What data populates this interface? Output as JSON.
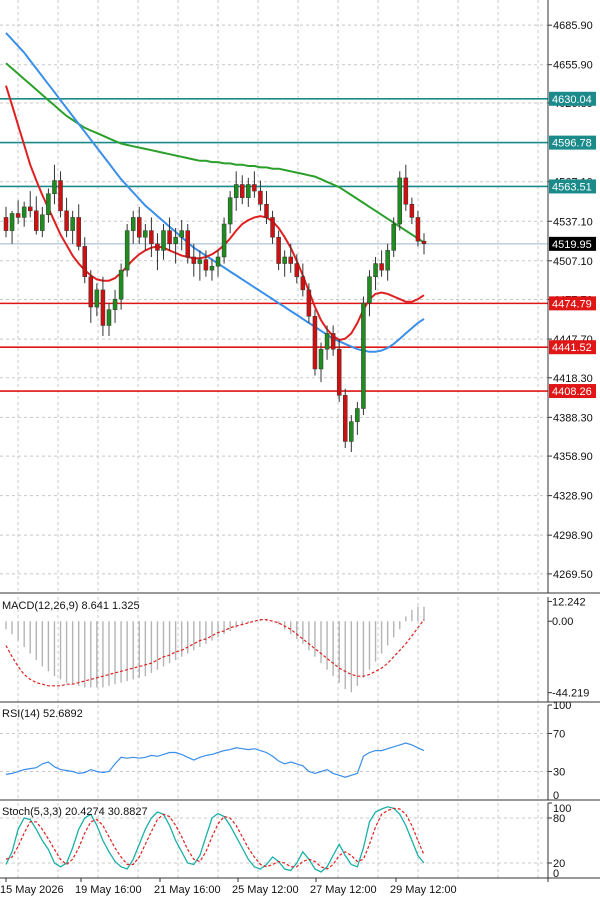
{
  "chart_data": {
    "type": "candlestick",
    "price_panel": {
      "y_ticks": [
        "4685.90",
        "4655.90",
        "4626.80",
        "4567.10",
        "4537.10",
        "4507.10",
        "4477.70",
        "4447.70",
        "4418.30",
        "4388.30",
        "4358.90",
        "4328.90",
        "4298.90",
        "4269.50"
      ],
      "ylim": [
        4255,
        4705
      ],
      "current_price": "4519.95",
      "horizontal_levels": [
        {
          "label": "4630.04",
          "value": 4630.04,
          "color": "#1a8a8a"
        },
        {
          "label": "4596.78",
          "value": 4596.78,
          "color": "#1a8a8a"
        },
        {
          "label": "4563.51",
          "value": 4563.51,
          "color": "#1a8a8a"
        },
        {
          "label": "4474.79",
          "value": 4474.79,
          "color": "#e01515"
        },
        {
          "label": "4441.52",
          "value": 4441.52,
          "color": "#e01515"
        },
        {
          "label": "4408.26",
          "value": 4408.26,
          "color": "#e01515"
        }
      ],
      "candles": [
        [
          4540,
          4548,
          4525,
          4530
        ],
        [
          4530,
          4545,
          4520,
          4543
        ],
        [
          4543,
          4553,
          4535,
          4540
        ],
        [
          4540,
          4552,
          4533,
          4548
        ],
        [
          4548,
          4560,
          4540,
          4545
        ],
        [
          4545,
          4556,
          4527,
          4530
        ],
        [
          4530,
          4548,
          4525,
          4542
        ],
        [
          4542,
          4562,
          4536,
          4558
        ],
        [
          4558,
          4580,
          4550,
          4568
        ],
        [
          4568,
          4575,
          4540,
          4545
        ],
        [
          4545,
          4555,
          4525,
          4530
        ],
        [
          4530,
          4545,
          4520,
          4540
        ],
        [
          4540,
          4550,
          4515,
          4518
        ],
        [
          4518,
          4525,
          4490,
          4495
        ],
        [
          4495,
          4500,
          4460,
          4472
        ],
        [
          4472,
          4490,
          4465,
          4485
        ],
        [
          4485,
          4495,
          4450,
          4458
        ],
        [
          4458,
          4475,
          4450,
          4470
        ],
        [
          4470,
          4485,
          4460,
          4478
        ],
        [
          4478,
          4505,
          4470,
          4500
        ],
        [
          4500,
          4535,
          4495,
          4530
        ],
        [
          4530,
          4545,
          4520,
          4540
        ],
        [
          4540,
          4548,
          4520,
          4525
        ],
        [
          4525,
          4535,
          4515,
          4530
        ],
        [
          4530,
          4540,
          4510,
          4520
        ],
        [
          4520,
          4528,
          4500,
          4515
        ],
        [
          4515,
          4535,
          4508,
          4530
        ],
        [
          4530,
          4540,
          4515,
          4520
        ],
        [
          4520,
          4532,
          4505,
          4525
        ],
        [
          4525,
          4538,
          4515,
          4530
        ],
        [
          4530,
          4535,
          4505,
          4510
        ],
        [
          4510,
          4520,
          4495,
          4505
        ],
        [
          4505,
          4515,
          4492,
          4508
        ],
        [
          4508,
          4515,
          4495,
          4500
        ],
        [
          4500,
          4508,
          4492,
          4503
        ],
        [
          4503,
          4515,
          4495,
          4510
        ],
        [
          4510,
          4540,
          4505,
          4535
        ],
        [
          4535,
          4560,
          4528,
          4555
        ],
        [
          4555,
          4575,
          4545,
          4565
        ],
        [
          4565,
          4572,
          4550,
          4555
        ],
        [
          4555,
          4570,
          4548,
          4565
        ],
        [
          4565,
          4575,
          4555,
          4560
        ],
        [
          4560,
          4568,
          4545,
          4550
        ],
        [
          4550,
          4560,
          4535,
          4540
        ],
        [
          4540,
          4545,
          4520,
          4525
        ],
        [
          4525,
          4530,
          4500,
          4505
        ],
        [
          4505,
          4515,
          4495,
          4510
        ],
        [
          4510,
          4520,
          4498,
          4505
        ],
        [
          4505,
          4512,
          4490,
          4495
        ],
        [
          4495,
          4505,
          4480,
          4485
        ],
        [
          4485,
          4490,
          4460,
          4465
        ],
        [
          4465,
          4470,
          4420,
          4425
        ],
        [
          4425,
          4445,
          4415,
          4440
        ],
        [
          4440,
          4458,
          4432,
          4452
        ],
        [
          4452,
          4458,
          4435,
          4440
        ],
        [
          4440,
          4448,
          4400,
          4405
        ],
        [
          4405,
          4410,
          4365,
          4370
        ],
        [
          4370,
          4390,
          4362,
          4385
        ],
        [
          4385,
          4400,
          4375,
          4395
        ],
        [
          4395,
          4480,
          4390,
          4475
        ],
        [
          4475,
          4500,
          4465,
          4495
        ],
        [
          4495,
          4510,
          4485,
          4505
        ],
        [
          4505,
          4515,
          4495,
          4500
        ],
        [
          4500,
          4520,
          4492,
          4515
        ],
        [
          4515,
          4540,
          4510,
          4535
        ],
        [
          4535,
          4575,
          4530,
          4570
        ],
        [
          4570,
          4580,
          4545,
          4550
        ],
        [
          4550,
          4555,
          4535,
          4540
        ],
        [
          4540,
          4545,
          4518,
          4522
        ],
        [
          4522,
          4528,
          4512,
          4520
        ]
      ],
      "moving_averages": [
        {
          "color": "#2aa02a",
          "values": [
            4657,
            4653,
            4649,
            4645,
            4641,
            4637,
            4633,
            4629,
            4625,
            4621,
            4617,
            4614,
            4611,
            4608,
            4606,
            4604,
            4602,
            4600,
            4598,
            4596,
            4595,
            4594,
            4593,
            4592,
            4591,
            4590,
            4589,
            4588,
            4587,
            4586,
            4585,
            4584,
            4583,
            4583,
            4582,
            4582,
            4581,
            4581,
            4580,
            4580,
            4579,
            4579,
            4578,
            4578,
            4577,
            4577,
            4576,
            4575,
            4574,
            4573,
            4572,
            4571,
            4569,
            4567,
            4565,
            4563,
            4560,
            4557,
            4554,
            4551,
            4548,
            4545,
            4542,
            4539,
            4536,
            4533,
            4530,
            4527,
            4524,
            4521
          ]
        },
        {
          "color": "#3a8fe8",
          "values": [
            4680,
            4675,
            4670,
            4665,
            4659,
            4653,
            4647,
            4641,
            4635,
            4629,
            4623,
            4617,
            4611,
            4605,
            4599,
            4593,
            4587,
            4581,
            4575,
            4569,
            4564,
            4559,
            4554,
            4549,
            4545,
            4541,
            4537,
            4533,
            4529,
            4525,
            4521,
            4517,
            4514,
            4511,
            4508,
            4505,
            4502,
            4499,
            4496,
            4493,
            4490,
            4487,
            4484,
            4481,
            4478,
            4475,
            4472,
            4469,
            4466,
            4463,
            4460,
            4457,
            4454,
            4451,
            4448,
            4446,
            4444,
            4442,
            4440,
            4439,
            4438,
            4438,
            4439,
            4441,
            4444,
            4448,
            4452,
            4456,
            4460,
            4463
          ]
        },
        {
          "color": "#e02020",
          "values": [
            4640,
            4625,
            4610,
            4595,
            4580,
            4568,
            4557,
            4547,
            4537,
            4527,
            4519,
            4511,
            4505,
            4500,
            4496,
            4493,
            4492,
            4492,
            4494,
            4498,
            4503,
            4508,
            4512,
            4515,
            4517,
            4518,
            4517,
            4515,
            4513,
            4511,
            4510,
            4509,
            4509,
            4510,
            4512,
            4515,
            4519,
            4524,
            4530,
            4535,
            4538,
            4540,
            4541,
            4540,
            4537,
            4532,
            4525,
            4517,
            4507,
            4496,
            4484,
            4472,
            4462,
            4455,
            4450,
            4447,
            4448,
            4452,
            4460,
            4470,
            4478,
            4482,
            4483,
            4482,
            4480,
            4478,
            4476,
            4476,
            4478,
            4481
          ]
        }
      ]
    },
    "x_labels": [
      "15 May 2026",
      "19 May 16:00",
      "21 May 16:00",
      "25 May 12:00",
      "27 May 12:00",
      "29 May 12:00"
    ],
    "macd": {
      "label": "MACD(12,26,9) 8.641 1.325",
      "y_ticks": [
        "12.242",
        "0.00",
        "-44.219"
      ],
      "ylim": [
        -50,
        15
      ],
      "histogram": [
        -5,
        -8,
        -12,
        -16,
        -20,
        -24,
        -28,
        -31,
        -34,
        -36,
        -38,
        -39,
        -40,
        -41,
        -41,
        -41,
        -41,
        -40,
        -39,
        -38,
        -37,
        -36,
        -35,
        -34,
        -32,
        -30,
        -28,
        -26,
        -24,
        -22,
        -20,
        -18,
        -16,
        -14,
        -12,
        -10,
        -8,
        -6,
        -4,
        -2,
        -1,
        0,
        1,
        1,
        0,
        -2,
        -5,
        -8,
        -11,
        -14,
        -18,
        -22,
        -26,
        -30,
        -34,
        -38,
        -42,
        -44,
        -40,
        -35,
        -30,
        -25,
        -20,
        -15,
        -10,
        -5,
        3,
        7,
        9,
        9
      ],
      "signal": [
        -15,
        -22,
        -28,
        -33,
        -36,
        -38,
        -39,
        -40,
        -40,
        -40,
        -39,
        -39,
        -38,
        -37,
        -36,
        -35,
        -34,
        -33,
        -32,
        -31,
        -30,
        -29,
        -28,
        -27,
        -26,
        -24,
        -22,
        -21,
        -19,
        -18,
        -16,
        -14,
        -12,
        -11,
        -9,
        -7,
        -6,
        -4,
        -3,
        -2,
        -1,
        0,
        1,
        1,
        0,
        -1,
        -3,
        -5,
        -8,
        -11,
        -14,
        -17,
        -20,
        -23,
        -26,
        -29,
        -31,
        -33,
        -34,
        -34,
        -33,
        -31,
        -29,
        -26,
        -22,
        -18,
        -14,
        -9,
        -4,
        1
      ]
    },
    "rsi": {
      "label": "RSI(14) 52.6892",
      "y_ticks": [
        "100",
        "70",
        "30",
        "0"
      ],
      "ylim": [
        0,
        100
      ],
      "values": [
        27,
        28,
        30,
        32,
        33,
        34,
        38,
        40,
        35,
        32,
        31,
        30,
        28,
        29,
        32,
        30,
        29,
        30,
        38,
        45,
        44,
        45,
        44,
        45,
        47,
        46,
        48,
        50,
        50,
        48,
        45,
        42,
        45,
        47,
        48,
        50,
        52,
        53,
        55,
        54,
        53,
        54,
        52,
        50,
        46,
        41,
        38,
        40,
        38,
        36,
        30,
        28,
        30,
        32,
        28,
        26,
        24,
        26,
        28,
        46,
        50,
        52,
        52,
        54,
        56,
        58,
        60,
        58,
        55,
        52
      ]
    },
    "stoch": {
      "label": "Stoch(5,3,3) 20.4274 30.8827",
      "y_ticks": [
        "100",
        "80",
        "20",
        "0"
      ],
      "ylim": [
        0,
        100
      ],
      "k": [
        18,
        35,
        65,
        80,
        78,
        65,
        50,
        38,
        20,
        15,
        20,
        40,
        65,
        80,
        85,
        70,
        50,
        35,
        22,
        15,
        12,
        25,
        45,
        65,
        80,
        88,
        85,
        70,
        50,
        35,
        20,
        18,
        30,
        55,
        80,
        86,
        82,
        70,
        55,
        40,
        25,
        15,
        12,
        18,
        28,
        22,
        12,
        10,
        20,
        35,
        25,
        12,
        8,
        15,
        30,
        45,
        30,
        18,
        15,
        40,
        75,
        88,
        92,
        95,
        93,
        85,
        70,
        50,
        30,
        20
      ],
      "d": [
        25,
        28,
        42,
        60,
        75,
        75,
        65,
        52,
        38,
        25,
        18,
        25,
        40,
        60,
        75,
        78,
        70,
        55,
        40,
        28,
        18,
        18,
        28,
        45,
        62,
        78,
        85,
        82,
        70,
        55,
        38,
        25,
        22,
        35,
        55,
        72,
        82,
        80,
        70,
        55,
        40,
        28,
        18,
        15,
        18,
        22,
        20,
        15,
        15,
        22,
        25,
        22,
        15,
        12,
        18,
        30,
        35,
        30,
        22,
        25,
        45,
        68,
        85,
        90,
        93,
        92,
        85,
        70,
        50,
        31
      ]
    }
  }
}
